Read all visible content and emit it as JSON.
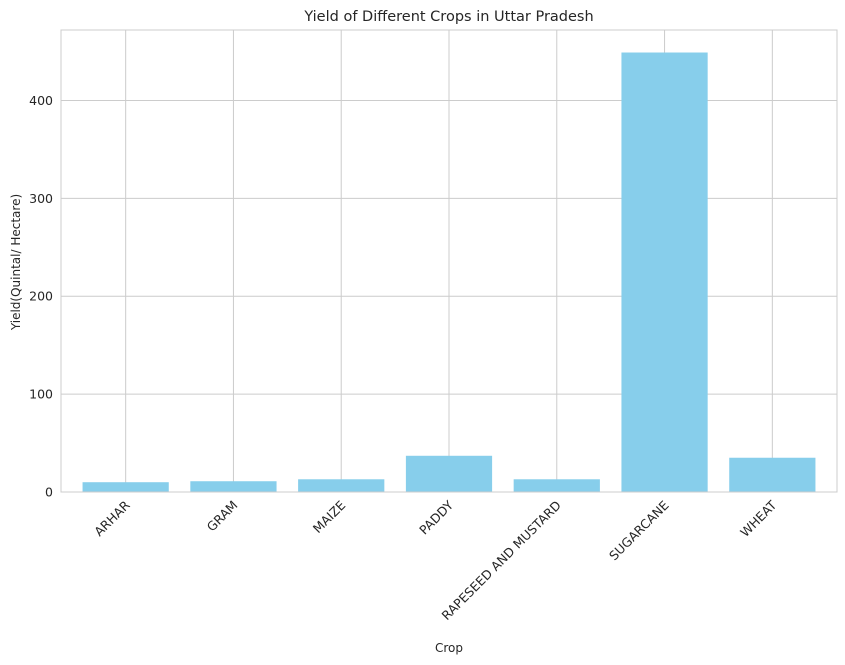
{
  "chart_data": {
    "type": "bar",
    "title": "Yield of Different Crops in Uttar Pradesh",
    "xlabel": "Crop",
    "ylabel": "Yield(Quintal/ Hectare)",
    "categories": [
      "ARHAR",
      "GRAM",
      "MAIZE",
      "PADDY",
      "RAPESEED AND MUSTARD",
      "SUGARCANE",
      "WHEAT"
    ],
    "values": [
      10,
      11,
      13,
      37,
      13,
      449,
      35
    ],
    "ylim": [
      0,
      472
    ],
    "yticks": [
      0,
      100,
      200,
      300,
      400
    ],
    "bar_color": "#87ceeb",
    "grid": true,
    "x_tick_rotation_deg": 45
  }
}
